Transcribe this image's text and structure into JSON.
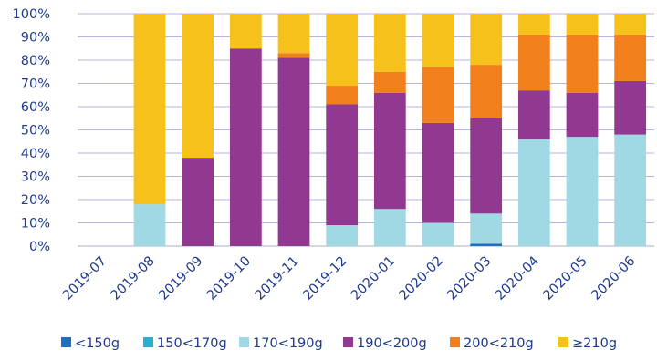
{
  "chart_data": {
    "type": "bar",
    "stacked": true,
    "percent": true,
    "categories": [
      "2019-07",
      "2019-08",
      "2019-09",
      "2019-10",
      "2019-11",
      "2019-12",
      "2020-01",
      "2020-02",
      "2020-03",
      "2020-04",
      "2020-05",
      "2020-06"
    ],
    "y_ticks": [
      "0%",
      "10%",
      "20%",
      "30%",
      "40%",
      "50%",
      "60%",
      "70%",
      "80%",
      "90%",
      "100%"
    ],
    "ylim": [
      0,
      100
    ],
    "grid": true,
    "legend_position": "bottom",
    "series": [
      {
        "name": "<150g",
        "color": "#1f6fc0",
        "values": [
          0,
          0,
          0,
          0,
          0,
          0,
          0,
          0,
          1,
          0,
          0,
          0
        ]
      },
      {
        "name": "150<170g",
        "color": "#2aaed1",
        "values": [
          0,
          0,
          0,
          0,
          0,
          0,
          0,
          0,
          0,
          0,
          0,
          0
        ]
      },
      {
        "name": "170<190g",
        "color": "#a0d9e3",
        "values": [
          0,
          18,
          0,
          0,
          0,
          9,
          16,
          10,
          13,
          46,
          47,
          48
        ]
      },
      {
        "name": "190<200g",
        "color": "#913891",
        "values": [
          0,
          0,
          38,
          85,
          81,
          52,
          50,
          43,
          41,
          21,
          19,
          23
        ]
      },
      {
        "name": "200<210g",
        "color": "#f07f1c",
        "values": [
          0,
          0,
          0,
          0,
          2,
          8,
          9,
          24,
          23,
          24,
          25,
          20
        ]
      },
      {
        "name": "≥210g",
        "color": "#f6c11a",
        "values": [
          0,
          82,
          62,
          15,
          17,
          31,
          25,
          23,
          22,
          9,
          9,
          9
        ]
      }
    ]
  }
}
